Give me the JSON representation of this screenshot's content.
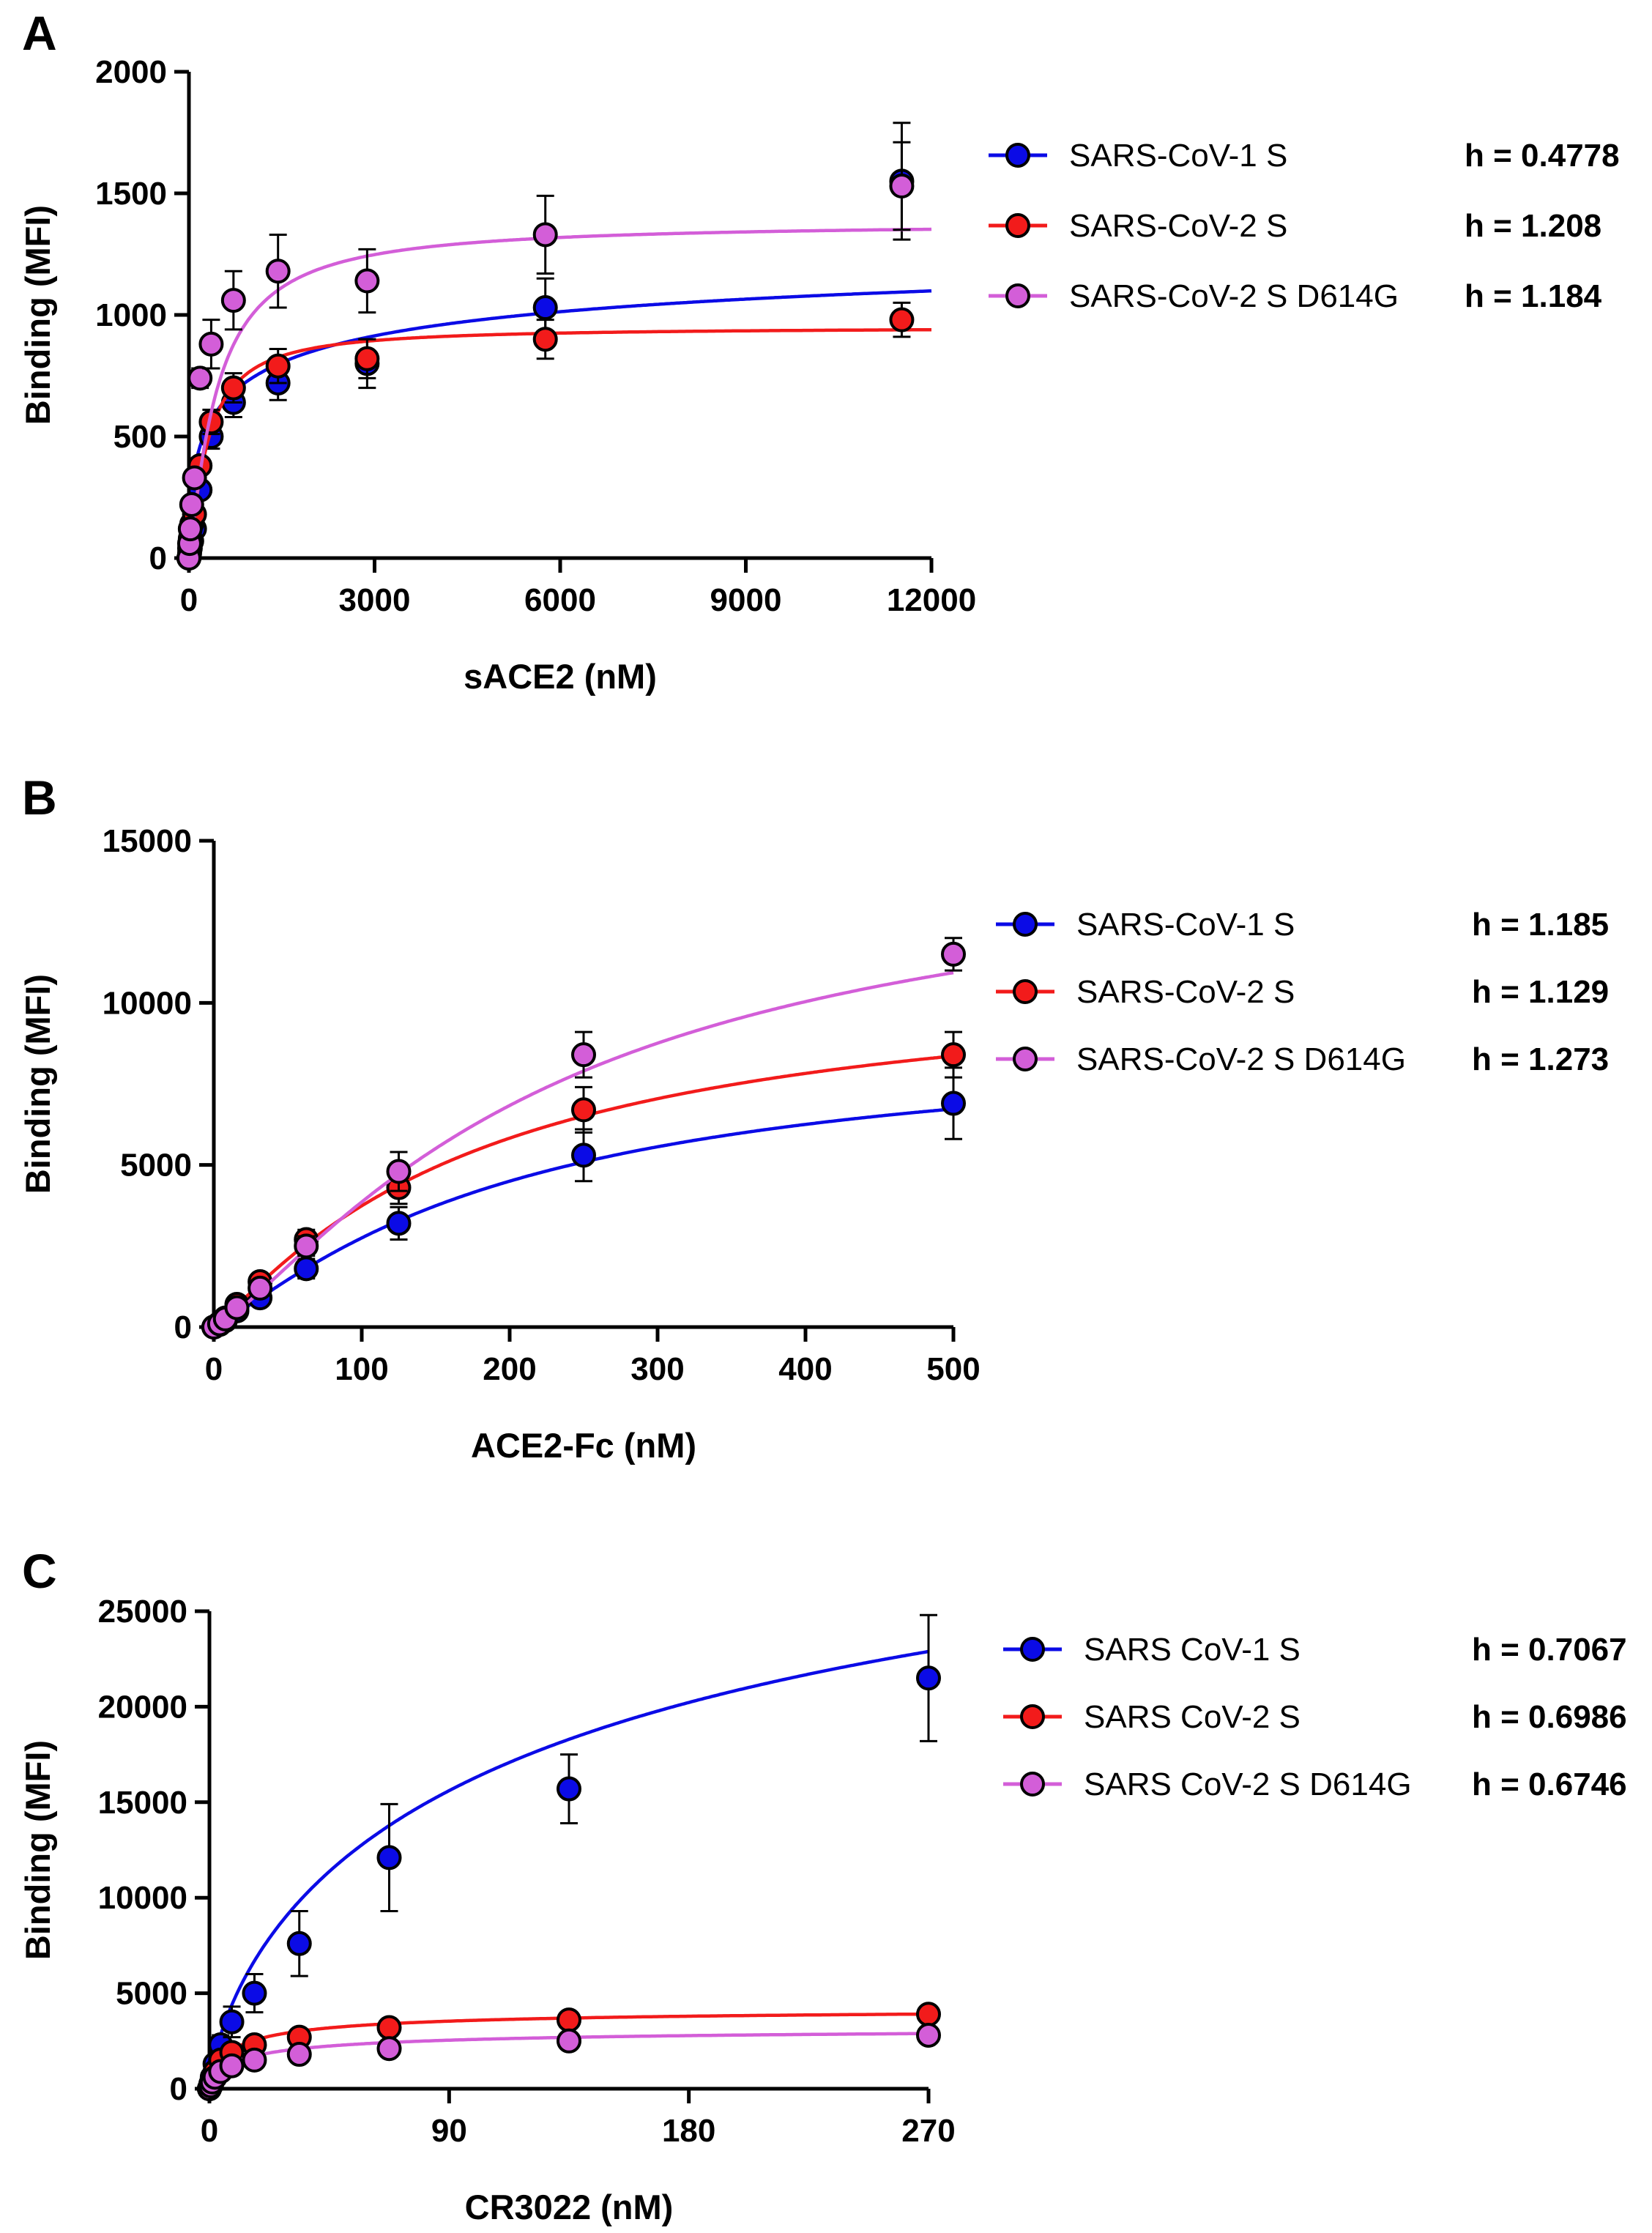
{
  "figure": {
    "panel_count": 3
  },
  "chart_data": [
    {
      "panel": "A",
      "type": "scatter",
      "title": "",
      "xlabel": "sACE2 (nM)",
      "ylabel": "Binding (MFI)",
      "xlim": [
        0,
        12000
      ],
      "ylim": [
        0,
        2000
      ],
      "xticks": [
        "0",
        "3000",
        "6000",
        "9000",
        "12000"
      ],
      "yticks": [
        "0",
        "500",
        "1000",
        "1500",
        "2000"
      ],
      "grid": false,
      "legend_position": "right",
      "series": [
        {
          "name": "SARS-CoV-1 S",
          "h_label": "h = 0.4778",
          "color": "#0b0be6",
          "fit": {
            "bmax": 1400,
            "kd": 800,
            "h": 0.4778
          },
          "x": [
            0,
            11,
            22,
            45,
            90,
            180,
            360,
            720,
            1440,
            2880,
            5760,
            11520
          ],
          "y": [
            0,
            20,
            40,
            70,
            120,
            280,
            500,
            640,
            720,
            800,
            1030,
            1550
          ],
          "err": [
            0,
            0,
            0,
            0,
            20,
            30,
            50,
            60,
            70,
            100,
            120,
            240
          ]
        },
        {
          "name": "SARS-CoV-2 S",
          "h_label": "h = 1.208",
          "color": "#f21b1b",
          "fit": {
            "bmax": 950,
            "kd": 300,
            "h": 1.208
          },
          "x": [
            0,
            11,
            22,
            45,
            90,
            180,
            360,
            720,
            1440,
            2880,
            5760,
            11520
          ],
          "y": [
            0,
            40,
            80,
            140,
            180,
            380,
            560,
            700,
            790,
            820,
            900,
            980
          ],
          "err": [
            0,
            0,
            0,
            0,
            20,
            30,
            50,
            60,
            70,
            80,
            80,
            70
          ]
        },
        {
          "name": "SARS-CoV-2 S D614G",
          "h_label": "h = 1.184",
          "color": "#d35ed8",
          "fit": {
            "bmax": 1380,
            "kd": 450,
            "h": 1.184
          },
          "x": [
            0,
            11,
            22,
            45,
            90,
            180,
            360,
            720,
            1440,
            2880,
            5760,
            11520
          ],
          "y": [
            0,
            60,
            120,
            220,
            330,
            740,
            880,
            1060,
            1180,
            1140,
            1330,
            1530
          ],
          "err": [
            0,
            0,
            0,
            0,
            30,
            40,
            100,
            120,
            150,
            130,
            160,
            180
          ]
        }
      ]
    },
    {
      "panel": "B",
      "type": "scatter",
      "title": "",
      "xlabel": "ACE2-Fc (nM)",
      "ylabel": "Binding (MFI)",
      "xlim": [
        0,
        500
      ],
      "ylim": [
        0,
        15000
      ],
      "xticks": [
        "0",
        "100",
        "200",
        "300",
        "400",
        "500"
      ],
      "yticks": [
        "0",
        "5000",
        "10000",
        "15000"
      ],
      "grid": false,
      "legend_position": "right",
      "series": [
        {
          "name": "SARS-CoV-1 S",
          "h_label": "h = 1.185",
          "color": "#0b0be6",
          "fit": {
            "bmax": 9000,
            "kd": 200,
            "h": 1.185
          },
          "x": [
            0,
            3.9,
            7.8,
            15.6,
            31.25,
            62.5,
            125,
            250,
            500
          ],
          "y": [
            0,
            80,
            200,
            500,
            900,
            1800,
            3200,
            5300,
            6900
          ],
          "err": [
            0,
            0,
            0,
            100,
            200,
            300,
            500,
            800,
            1100
          ]
        },
        {
          "name": "SARS-CoV-2 S",
          "h_label": "h = 1.129",
          "color": "#f21b1b",
          "fit": {
            "bmax": 11000,
            "kd": 180,
            "h": 1.129
          },
          "x": [
            0,
            3.9,
            7.8,
            15.6,
            31.25,
            62.5,
            125,
            250,
            500
          ],
          "y": [
            0,
            120,
            280,
            700,
            1400,
            2700,
            4300,
            6700,
            8400
          ],
          "err": [
            0,
            0,
            0,
            100,
            200,
            300,
            500,
            700,
            700
          ]
        },
        {
          "name": "SARS-CoV-2 S D614G",
          "h_label": "h = 1.273",
          "color": "#d35ed8",
          "fit": {
            "bmax": 15000,
            "kd": 230,
            "h": 1.273
          },
          "x": [
            0,
            3.9,
            7.8,
            15.6,
            31.25,
            62.5,
            125,
            250,
            500
          ],
          "y": [
            0,
            100,
            250,
            600,
            1200,
            2500,
            4800,
            8400,
            11500
          ],
          "err": [
            0,
            0,
            0,
            100,
            200,
            300,
            600,
            700,
            500
          ]
        }
      ]
    },
    {
      "panel": "C",
      "type": "scatter",
      "title": "",
      "xlabel": "CR3022 (nM)",
      "ylabel": "Binding (MFI)",
      "xlim": [
        0,
        270
      ],
      "ylim": [
        0,
        25000
      ],
      "xticks": [
        "0",
        "90",
        "180",
        "270"
      ],
      "yticks": [
        "0",
        "5000",
        "10000",
        "15000",
        "20000",
        "25000"
      ],
      "grid": false,
      "legend_position": "right",
      "series": [
        {
          "name": "SARS CoV-1 S",
          "h_label": "h = 0.7067",
          "color": "#0b0be6",
          "fit": {
            "bmax": 38000,
            "kd": 150,
            "h": 0.7067
          },
          "x": [
            0,
            0.52,
            1.05,
            2.1,
            4.2,
            8.4,
            16.9,
            33.75,
            67.5,
            135,
            270
          ],
          "y": [
            0,
            250,
            600,
            1300,
            2300,
            3500,
            5000,
            7600,
            12100,
            15700,
            21500
          ],
          "err": [
            0,
            0,
            0,
            300,
            500,
            800,
            1000,
            1700,
            2800,
            1800,
            3300
          ]
        },
        {
          "name": "SARS CoV-2 S",
          "h_label": "h = 0.6986",
          "color": "#f21b1b",
          "fit": {
            "bmax": 4300,
            "kd": 10,
            "h": 0.6986
          },
          "x": [
            0,
            0.52,
            1.05,
            2.1,
            4.2,
            8.4,
            16.9,
            33.75,
            67.5,
            135,
            270
          ],
          "y": [
            0,
            200,
            500,
            900,
            1500,
            1900,
            2300,
            2700,
            3200,
            3600,
            3900
          ],
          "err": [
            0,
            0,
            0,
            0,
            100,
            200,
            200,
            200,
            200,
            200,
            200
          ]
        },
        {
          "name": "SARS CoV-2 S D614G",
          "h_label": "h = 0.6746",
          "color": "#d35ed8",
          "fit": {
            "bmax": 3300,
            "kd": 15,
            "h": 0.6746
          },
          "x": [
            0,
            0.52,
            1.05,
            2.1,
            4.2,
            8.4,
            16.9,
            33.75,
            67.5,
            135,
            270
          ],
          "y": [
            0,
            150,
            350,
            600,
            900,
            1200,
            1500,
            1800,
            2100,
            2500,
            2800
          ],
          "err": [
            0,
            0,
            0,
            0,
            100,
            100,
            150,
            150,
            150,
            200,
            200
          ]
        }
      ]
    }
  ]
}
